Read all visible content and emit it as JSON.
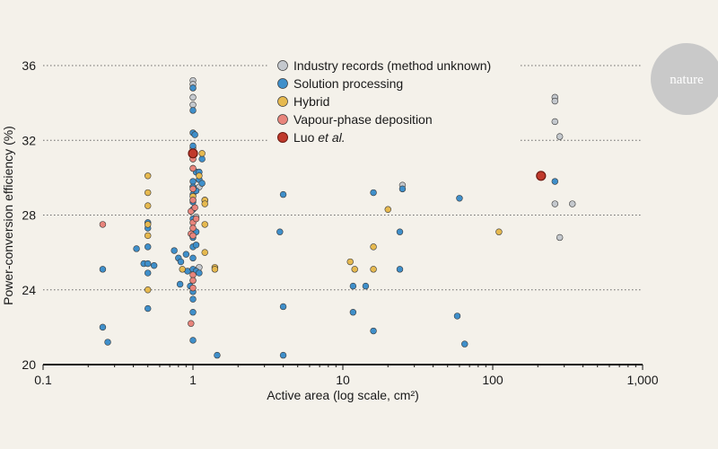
{
  "chart_data": {
    "type": "scatter",
    "xlabel": "Active area (log scale, cm²)",
    "ylabel": "Power-conversion efficiency (%)",
    "xscale": "log",
    "xlim": [
      0.1,
      1000
    ],
    "ylim": [
      20,
      37
    ],
    "xticks": [
      {
        "value": 0.1,
        "label": "0.1"
      },
      {
        "value": 1,
        "label": "1"
      },
      {
        "value": 10,
        "label": "10"
      },
      {
        "value": 100,
        "label": "100"
      },
      {
        "value": 1000,
        "label": "1,000"
      }
    ],
    "yticks": [
      20,
      24,
      28,
      32,
      36
    ],
    "grid": "horizontal dotted",
    "legend_position": "top-center",
    "logo": "nature",
    "series": [
      {
        "name": "Industry records (method unknown)",
        "color": "#c4c8cd",
        "points": [
          [
            1.0,
            35.2
          ],
          [
            1.0,
            35.0
          ],
          [
            1.0,
            34.8
          ],
          [
            1.0,
            34.3
          ],
          [
            1.0,
            33.9
          ],
          [
            1.0,
            31.6
          ],
          [
            1.0,
            29.5
          ],
          [
            1.0,
            28.8
          ],
          [
            1.05,
            27.9
          ],
          [
            1.1,
            29.5
          ],
          [
            1.1,
            25.2
          ],
          [
            25,
            29.6
          ],
          [
            260,
            34.3
          ],
          [
            260,
            34.1
          ],
          [
            260,
            33.0
          ],
          [
            280,
            32.2
          ],
          [
            340,
            28.6
          ],
          [
            260,
            28.6
          ],
          [
            280,
            26.8
          ]
        ]
      },
      {
        "name": "Solution processing",
        "color": "#3f8fca",
        "points": [
          [
            0.25,
            25.1
          ],
          [
            0.25,
            22.0
          ],
          [
            0.27,
            21.2
          ],
          [
            0.42,
            26.2
          ],
          [
            0.47,
            25.4
          ],
          [
            0.5,
            27.6
          ],
          [
            0.5,
            27.3
          ],
          [
            0.5,
            26.3
          ],
          [
            0.5,
            25.4
          ],
          [
            0.5,
            24.9
          ],
          [
            0.5,
            23.0
          ],
          [
            0.55,
            25.3
          ],
          [
            0.75,
            26.1
          ],
          [
            0.8,
            25.7
          ],
          [
            0.82,
            24.3
          ],
          [
            0.83,
            25.5
          ],
          [
            0.9,
            25.9
          ],
          [
            0.92,
            25.0
          ],
          [
            0.96,
            24.2
          ],
          [
            1.0,
            34.8
          ],
          [
            1.0,
            33.6
          ],
          [
            1.0,
            32.4
          ],
          [
            1.0,
            31.7
          ],
          [
            1.0,
            31.0
          ],
          [
            1.0,
            30.5
          ],
          [
            1.0,
            29.8
          ],
          [
            1.0,
            29.5
          ],
          [
            1.0,
            29.1
          ],
          [
            1.0,
            28.7
          ],
          [
            1.0,
            28.3
          ],
          [
            1.0,
            27.8
          ],
          [
            1.0,
            27.3
          ],
          [
            1.0,
            26.8
          ],
          [
            1.0,
            26.3
          ],
          [
            1.0,
            25.7
          ],
          [
            1.0,
            25.1
          ],
          [
            1.0,
            24.5
          ],
          [
            1.0,
            23.9
          ],
          [
            1.0,
            23.5
          ],
          [
            1.0,
            22.8
          ],
          [
            1.0,
            21.3
          ],
          [
            1.03,
            32.3
          ],
          [
            1.05,
            30.3
          ],
          [
            1.05,
            29.3
          ],
          [
            1.05,
            27.1
          ],
          [
            1.05,
            26.4
          ],
          [
            1.05,
            25.0
          ],
          [
            1.1,
            29.9
          ],
          [
            1.1,
            30.3
          ],
          [
            1.1,
            24.9
          ],
          [
            1.15,
            31.0
          ],
          [
            1.15,
            29.7
          ],
          [
            1.2,
            28.8
          ],
          [
            1.45,
            20.5
          ],
          [
            3.8,
            27.1
          ],
          [
            4.0,
            29.1
          ],
          [
            4.0,
            23.1
          ],
          [
            4.0,
            20.5
          ],
          [
            11.7,
            24.2
          ],
          [
            11.7,
            22.8
          ],
          [
            14.2,
            24.2
          ],
          [
            16.0,
            29.2
          ],
          [
            16.0,
            21.8
          ],
          [
            24.0,
            27.1
          ],
          [
            24.0,
            25.1
          ],
          [
            25.0,
            29.4
          ],
          [
            58.0,
            22.6
          ],
          [
            60.0,
            28.9
          ],
          [
            65.0,
            21.1
          ],
          [
            260,
            29.8
          ]
        ]
      },
      {
        "name": "Hybrid",
        "color": "#e6b94f",
        "points": [
          [
            0.5,
            30.1
          ],
          [
            0.5,
            29.2
          ],
          [
            0.5,
            28.5
          ],
          [
            0.5,
            27.5
          ],
          [
            0.5,
            26.9
          ],
          [
            0.5,
            24.0
          ],
          [
            0.85,
            25.1
          ],
          [
            1.0,
            29.0
          ],
          [
            1.1,
            30.1
          ],
          [
            1.15,
            31.3
          ],
          [
            1.2,
            28.8
          ],
          [
            1.2,
            28.6
          ],
          [
            1.2,
            27.5
          ],
          [
            1.2,
            26.0
          ],
          [
            1.4,
            25.2
          ],
          [
            1.4,
            25.1
          ],
          [
            11.2,
            25.5
          ],
          [
            12.0,
            25.1
          ],
          [
            16.0,
            26.3
          ],
          [
            16.0,
            25.1
          ],
          [
            20.0,
            28.3
          ],
          [
            110,
            27.1
          ]
        ]
      },
      {
        "name": "Vapour-phase deposition",
        "color": "#e8847b",
        "points": [
          [
            0.25,
            27.5
          ],
          [
            0.97,
            28.2
          ],
          [
            0.97,
            27.0
          ],
          [
            0.97,
            22.2
          ],
          [
            1.0,
            31.0
          ],
          [
            1.0,
            30.5
          ],
          [
            1.0,
            29.4
          ],
          [
            1.0,
            28.8
          ],
          [
            1.0,
            27.6
          ],
          [
            1.0,
            27.3
          ],
          [
            1.0,
            26.9
          ],
          [
            1.0,
            24.8
          ],
          [
            1.0,
            24.5
          ],
          [
            1.0,
            24.1
          ],
          [
            1.03,
            28.4
          ],
          [
            1.05,
            27.8
          ]
        ]
      },
      {
        "name": "Luo et al.",
        "name_regular": "Luo ",
        "name_italic": "et al.",
        "color": "#c0392b",
        "points": [
          [
            1.0,
            31.3
          ],
          [
            210,
            30.1
          ]
        ]
      }
    ]
  }
}
